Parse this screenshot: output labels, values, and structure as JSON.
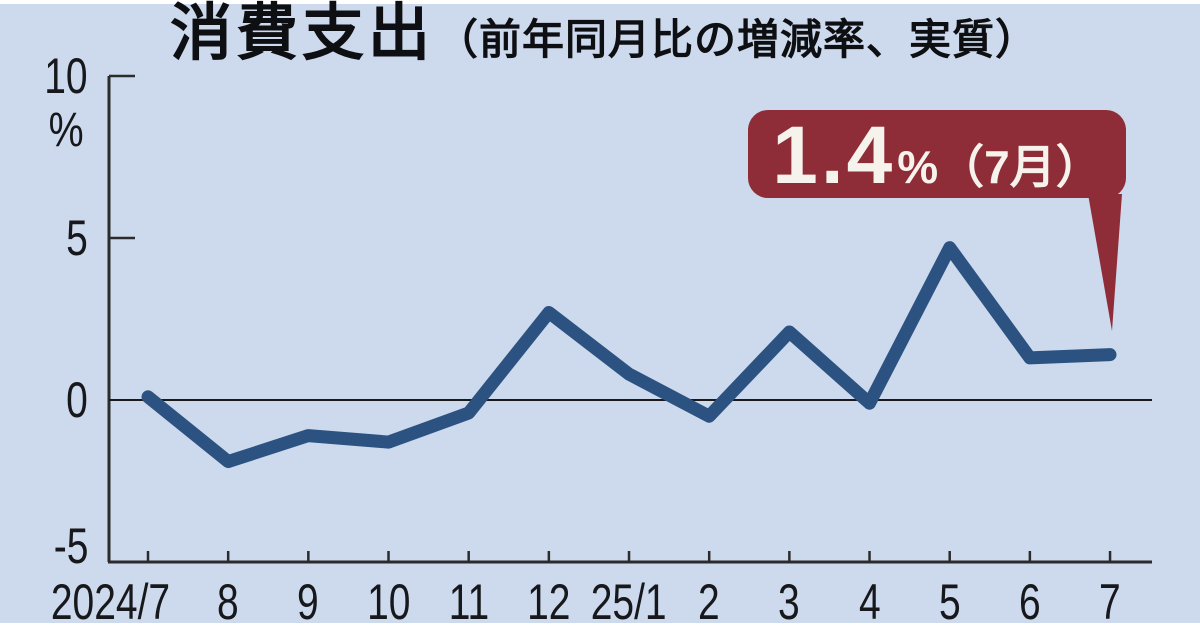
{
  "page": {
    "canvas_bg": "#cdd9ec",
    "frame_bg": "#ffffff",
    "text_color": "#16181c"
  },
  "header": {
    "title": "消費支出",
    "subtitle": "（前年同月比の増減率、実質）"
  },
  "axis": {
    "unit_label": "%",
    "axis_color": "#2b2b2b",
    "zero_line_color": "#1a1a1a"
  },
  "callout": {
    "value": "1.4",
    "suffix": "%（7月）",
    "bg": "#8e2d38",
    "text_color": "#f6f3ec"
  },
  "chart_data": {
    "type": "line",
    "title": "消費支出",
    "subtitle": "（前年同月比の増減率、実質）",
    "xlabel": "",
    "ylabel": "%",
    "categories": [
      "2024/7",
      "8",
      "9",
      "10",
      "11",
      "12",
      "25/1",
      "2",
      "3",
      "4",
      "5",
      "6",
      "7"
    ],
    "values": [
      0.1,
      -1.9,
      -1.1,
      -1.3,
      -0.4,
      2.7,
      0.8,
      -0.5,
      2.1,
      -0.1,
      4.7,
      1.3,
      1.4
    ],
    "series_name": "消費支出 前年同月比増減率（実質）",
    "ylim": [
      -5,
      10
    ],
    "y_ticks": [
      {
        "label": "10",
        "value": 10
      },
      {
        "label": "5",
        "value": 5
      },
      {
        "label": "0",
        "value": 0
      },
      {
        "label": "-5",
        "value": -5
      }
    ],
    "grid": "zero-line-only",
    "legend_position": "none",
    "line_color": "#2b5280",
    "annotation": {
      "text": "1.4%（7月）",
      "x": "7",
      "value": 1.4
    }
  }
}
